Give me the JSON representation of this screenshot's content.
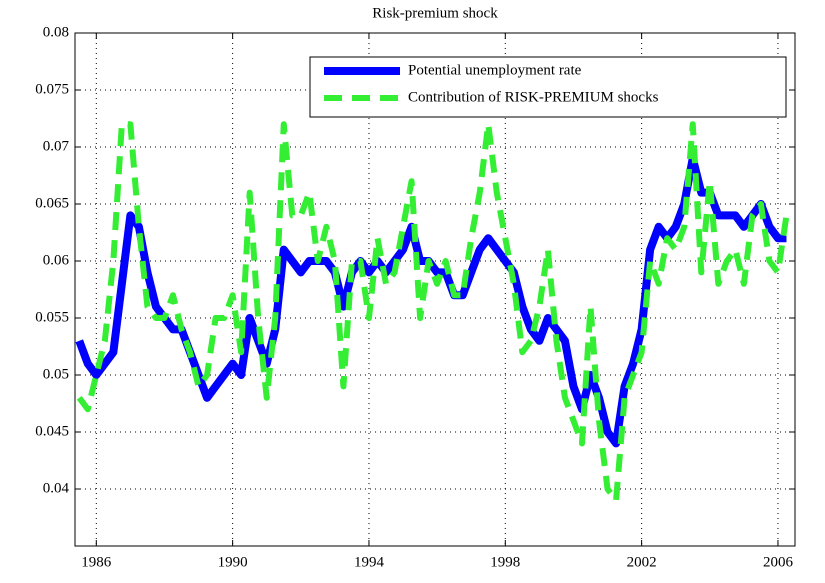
{
  "chart_data": {
    "type": "line",
    "title": "Risk-premium shock",
    "x": [
      1985.5,
      1985.75,
      1986,
      1986.25,
      1986.5,
      1986.75,
      1987,
      1987.25,
      1987.5,
      1987.75,
      1988,
      1988.25,
      1988.5,
      1988.75,
      1989,
      1989.25,
      1989.5,
      1989.75,
      1990,
      1990.25,
      1990.5,
      1990.75,
      1991,
      1991.25,
      1991.5,
      1991.75,
      1992,
      1992.25,
      1992.5,
      1992.75,
      1993,
      1993.25,
      1993.5,
      1993.75,
      1994,
      1994.25,
      1994.5,
      1994.75,
      1995,
      1995.25,
      1995.5,
      1995.75,
      1996,
      1996.25,
      1996.5,
      1996.75,
      1997,
      1997.25,
      1997.5,
      1997.75,
      1998,
      1998.25,
      1998.5,
      1998.75,
      1999,
      1999.25,
      1999.5,
      1999.75,
      2000,
      2000.25,
      2000.5,
      2000.75,
      2001,
      2001.25,
      2001.5,
      2001.75,
      2002,
      2002.25,
      2002.5,
      2002.75,
      2003,
      2003.25,
      2003.5,
      2003.75,
      2004,
      2004.25,
      2004.5,
      2004.75,
      2005,
      2005.25,
      2005.5,
      2005.75,
      2006,
      2006.25
    ],
    "series": [
      {
        "name": "Potential unemployment rate",
        "color": "#0000ff",
        "width": 8,
        "dashed": false,
        "values": [
          0.053,
          0.051,
          0.05,
          0.051,
          0.052,
          0.058,
          0.064,
          0.063,
          0.059,
          0.056,
          0.055,
          0.054,
          0.054,
          0.052,
          0.05,
          0.048,
          0.049,
          0.05,
          0.051,
          0.05,
          0.055,
          0.053,
          0.051,
          0.054,
          0.061,
          0.06,
          0.059,
          0.06,
          0.06,
          0.06,
          0.059,
          0.056,
          0.059,
          0.06,
          0.059,
          0.06,
          0.059,
          0.06,
          0.061,
          0.063,
          0.06,
          0.06,
          0.059,
          0.059,
          0.057,
          0.057,
          0.059,
          0.061,
          0.062,
          0.061,
          0.06,
          0.059,
          0.056,
          0.054,
          0.053,
          0.055,
          0.054,
          0.053,
          0.049,
          0.047,
          0.05,
          0.048,
          0.045,
          0.044,
          0.049,
          0.051,
          0.054,
          0.061,
          0.063,
          0.062,
          0.063,
          0.065,
          0.069,
          0.066,
          0.066,
          0.064,
          0.064,
          0.064,
          0.063,
          0.064,
          0.065,
          0.063,
          0.062,
          0.062
        ]
      },
      {
        "name": "Contribution of RISK-PREMIUM shocks",
        "color": "#33ee33",
        "width": 6,
        "dashed": true,
        "values": [
          0.048,
          0.047,
          0.05,
          0.053,
          0.06,
          0.072,
          0.072,
          0.063,
          0.056,
          0.055,
          0.055,
          0.057,
          0.054,
          0.052,
          0.049,
          0.05,
          0.055,
          0.055,
          0.057,
          0.052,
          0.066,
          0.055,
          0.048,
          0.055,
          0.072,
          0.064,
          0.064,
          0.066,
          0.06,
          0.063,
          0.06,
          0.049,
          0.06,
          0.06,
          0.055,
          0.062,
          0.058,
          0.059,
          0.063,
          0.067,
          0.055,
          0.06,
          0.058,
          0.06,
          0.057,
          0.057,
          0.062,
          0.066,
          0.072,
          0.066,
          0.062,
          0.058,
          0.052,
          0.053,
          0.056,
          0.061,
          0.053,
          0.048,
          0.046,
          0.044,
          0.056,
          0.046,
          0.04,
          0.039,
          0.048,
          0.05,
          0.052,
          0.06,
          0.058,
          0.062,
          0.061,
          0.063,
          0.072,
          0.059,
          0.067,
          0.058,
          0.06,
          0.061,
          0.058,
          0.064,
          0.065,
          0.06,
          0.059,
          0.064
        ]
      }
    ],
    "xlim": [
      1985.375,
      2006.5
    ],
    "xticks": [
      1986,
      1990,
      1994,
      1998,
      2002,
      2006
    ],
    "ylim": [
      0.035,
      0.08
    ],
    "yticks": [
      0.04,
      0.045,
      0.05,
      0.055,
      0.06,
      0.065,
      0.07,
      0.075,
      0.08
    ],
    "grid": true,
    "legend": "top-right"
  }
}
